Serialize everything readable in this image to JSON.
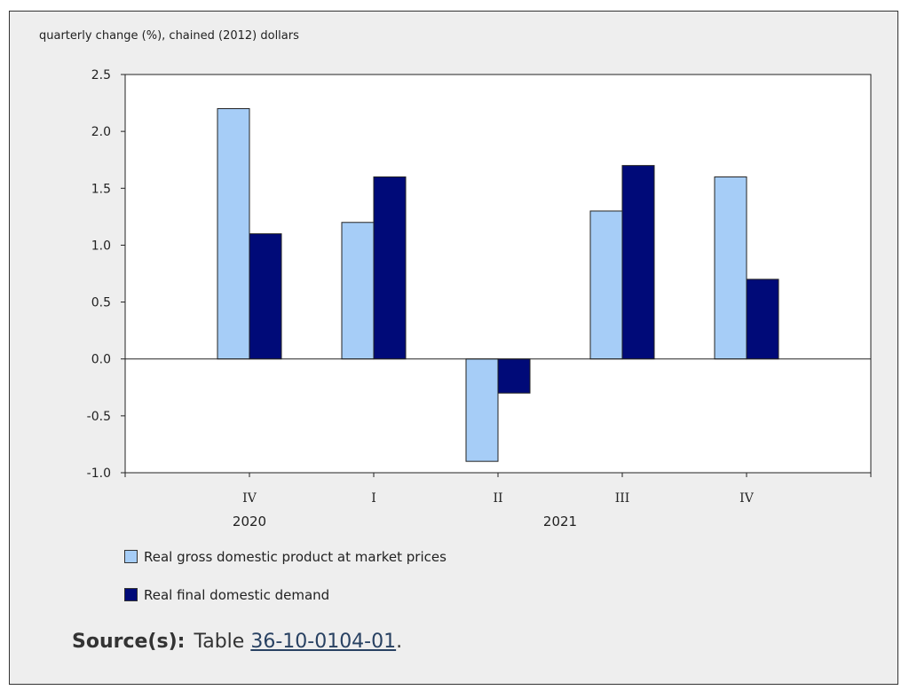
{
  "unit_label": "quarterly change (%), chained (2012) dollars",
  "source": {
    "label": "Source(s):",
    "prefix": "Table ",
    "link_text": "36-10-0104-01",
    "suffix": "."
  },
  "colors": {
    "gdp": "#a6cdf7",
    "demand": "#000a78"
  },
  "chart_data": {
    "type": "bar",
    "categories": [
      "IV",
      "I",
      "II",
      "III",
      "IV"
    ],
    "year_labels": [
      {
        "label": "2020",
        "category_index": 0
      },
      {
        "label": "2021",
        "category_index": 2.5
      }
    ],
    "series": [
      {
        "name": "Real gross domestic product at market prices",
        "values": [
          2.2,
          1.2,
          -0.9,
          1.3,
          1.6
        ]
      },
      {
        "name": "Real final domestic demand",
        "values": [
          1.1,
          1.6,
          -0.3,
          1.7,
          0.7
        ]
      }
    ],
    "yticks": [
      "2.5",
      "2.0",
      "1.5",
      "1.0",
      "0.5",
      "0.0",
      "-0.5",
      "-1.0"
    ],
    "ylim": [
      -1.0,
      2.5
    ],
    "grid": false,
    "legend_position": "bottom-left"
  }
}
